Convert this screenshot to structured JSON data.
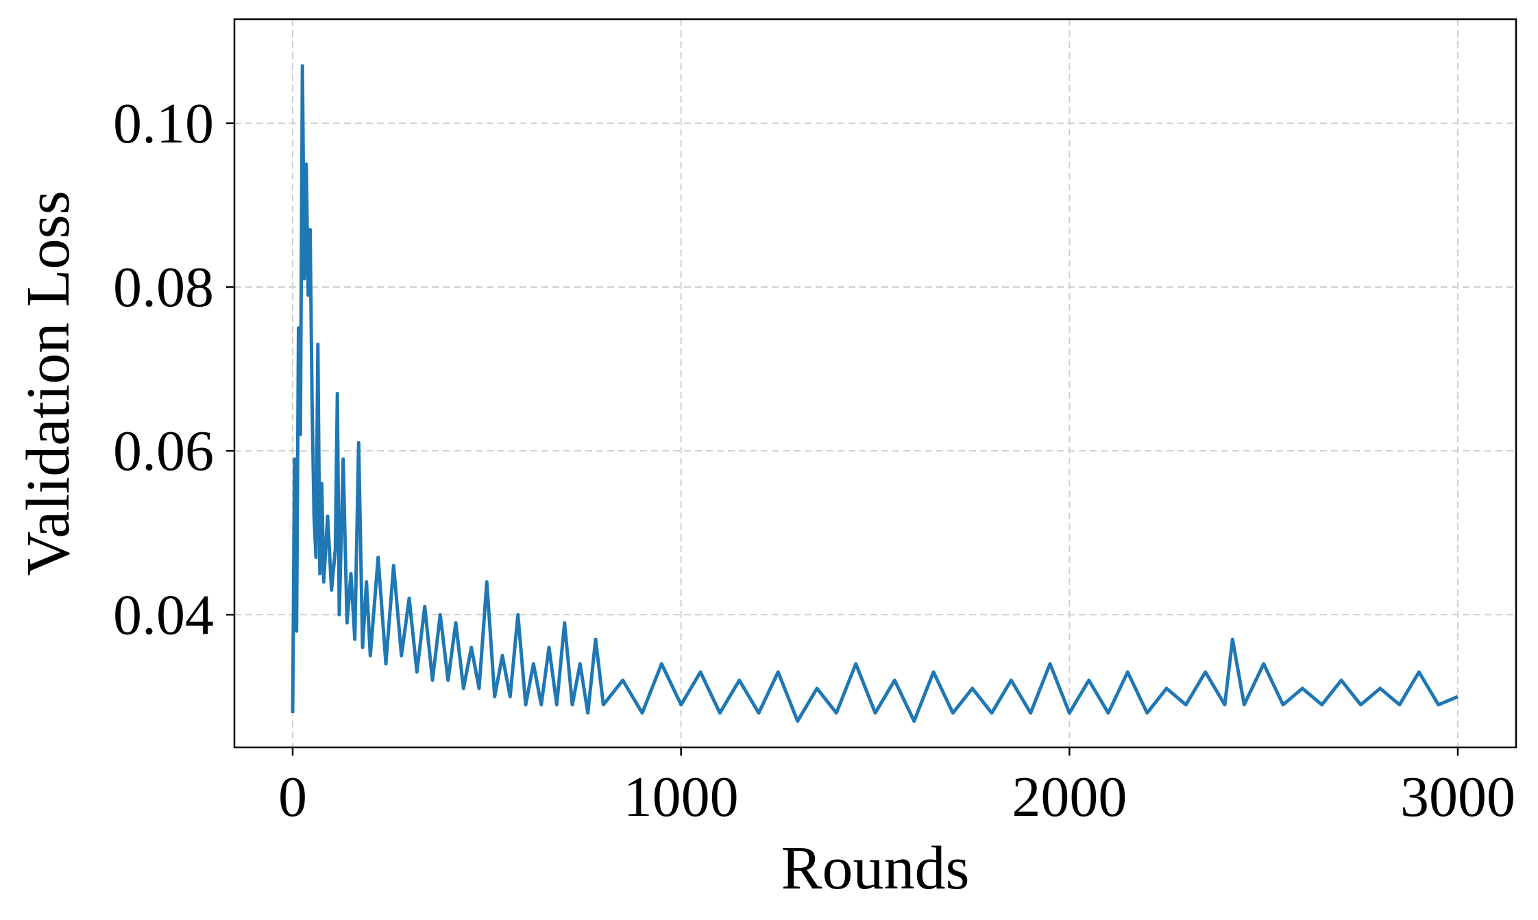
{
  "chart_data": {
    "type": "line",
    "title": "",
    "xlabel": "Rounds",
    "ylabel": "Validation Loss",
    "xlim": [
      -150,
      3150
    ],
    "ylim": [
      0.0238,
      0.1127
    ],
    "xticks": [
      0,
      1000,
      2000,
      3000
    ],
    "xtick_labels": [
      "0",
      "1000",
      "2000",
      "3000"
    ],
    "yticks": [
      0.04,
      0.06,
      0.08,
      0.1
    ],
    "ytick_labels": [
      "0.04",
      "0.06",
      "0.08",
      "0.10"
    ],
    "grid": true,
    "legend": "none",
    "series_color": "#1f77b4",
    "series": [
      {
        "x": [
          0,
          5,
          10,
          15,
          20,
          25,
          30,
          35,
          40,
          45,
          50,
          55,
          60,
          65,
          70,
          75,
          80,
          90,
          100,
          110,
          115,
          120,
          130,
          140,
          150,
          160,
          170,
          180,
          190,
          200,
          220,
          240,
          260,
          280,
          300,
          320,
          340,
          360,
          380,
          400,
          420,
          440,
          460,
          480,
          500,
          520,
          540,
          560,
          580,
          600,
          620,
          640,
          660,
          680,
          700,
          720,
          740,
          760,
          780,
          800,
          850,
          900,
          950,
          1000,
          1050,
          1100,
          1150,
          1200,
          1250,
          1300,
          1350,
          1400,
          1450,
          1500,
          1550,
          1600,
          1650,
          1700,
          1750,
          1800,
          1850,
          1900,
          1950,
          2000,
          2050,
          2100,
          2150,
          2200,
          2250,
          2300,
          2350,
          2400,
          2420,
          2450,
          2500,
          2550,
          2600,
          2650,
          2700,
          2750,
          2800,
          2850,
          2900,
          2950,
          3000
        ],
        "y": [
          0.028,
          0.059,
          0.038,
          0.075,
          0.062,
          0.107,
          0.081,
          0.095,
          0.079,
          0.087,
          0.066,
          0.052,
          0.047,
          0.073,
          0.045,
          0.056,
          0.044,
          0.052,
          0.043,
          0.048,
          0.067,
          0.04,
          0.059,
          0.039,
          0.045,
          0.037,
          0.061,
          0.036,
          0.044,
          0.035,
          0.047,
          0.034,
          0.046,
          0.035,
          0.042,
          0.033,
          0.041,
          0.032,
          0.04,
          0.032,
          0.039,
          0.031,
          0.036,
          0.031,
          0.044,
          0.03,
          0.035,
          0.03,
          0.04,
          0.029,
          0.034,
          0.029,
          0.036,
          0.029,
          0.039,
          0.029,
          0.034,
          0.028,
          0.037,
          0.029,
          0.032,
          0.028,
          0.034,
          0.029,
          0.033,
          0.028,
          0.032,
          0.028,
          0.033,
          0.027,
          0.031,
          0.028,
          0.034,
          0.028,
          0.032,
          0.027,
          0.033,
          0.028,
          0.031,
          0.028,
          0.032,
          0.028,
          0.034,
          0.028,
          0.032,
          0.028,
          0.033,
          0.028,
          0.031,
          0.029,
          0.033,
          0.029,
          0.037,
          0.029,
          0.034,
          0.029,
          0.031,
          0.029,
          0.032,
          0.029,
          0.031,
          0.029,
          0.033,
          0.029,
          0.03
        ]
      }
    ]
  }
}
